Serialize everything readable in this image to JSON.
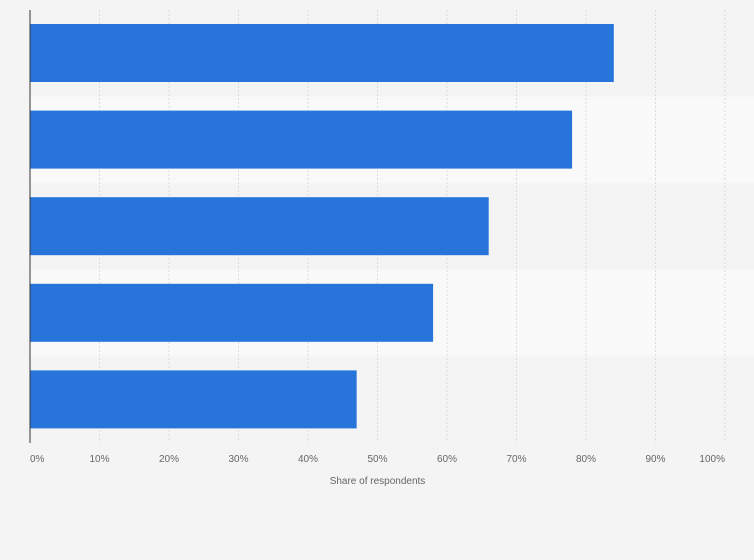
{
  "chart_data": {
    "type": "bar",
    "orientation": "horizontal",
    "categories": [
      "",
      "",
      "",
      "",
      ""
    ],
    "values": [
      84,
      78,
      66,
      58,
      47
    ],
    "xlabel": "Share of respondents",
    "ylabel": "",
    "xlim": [
      0,
      100
    ],
    "x_ticks": [
      "0%",
      "10%",
      "20%",
      "30%",
      "40%",
      "50%",
      "60%",
      "70%",
      "80%",
      "90%",
      "100%"
    ],
    "grid": true,
    "legend": "none"
  },
  "colors": {
    "bar": "#2775db",
    "background": "#f4f4f4",
    "band_alt": "#f9f9f9",
    "grid": "#dcdcdc",
    "axis": "#333333",
    "text": "#666666"
  }
}
